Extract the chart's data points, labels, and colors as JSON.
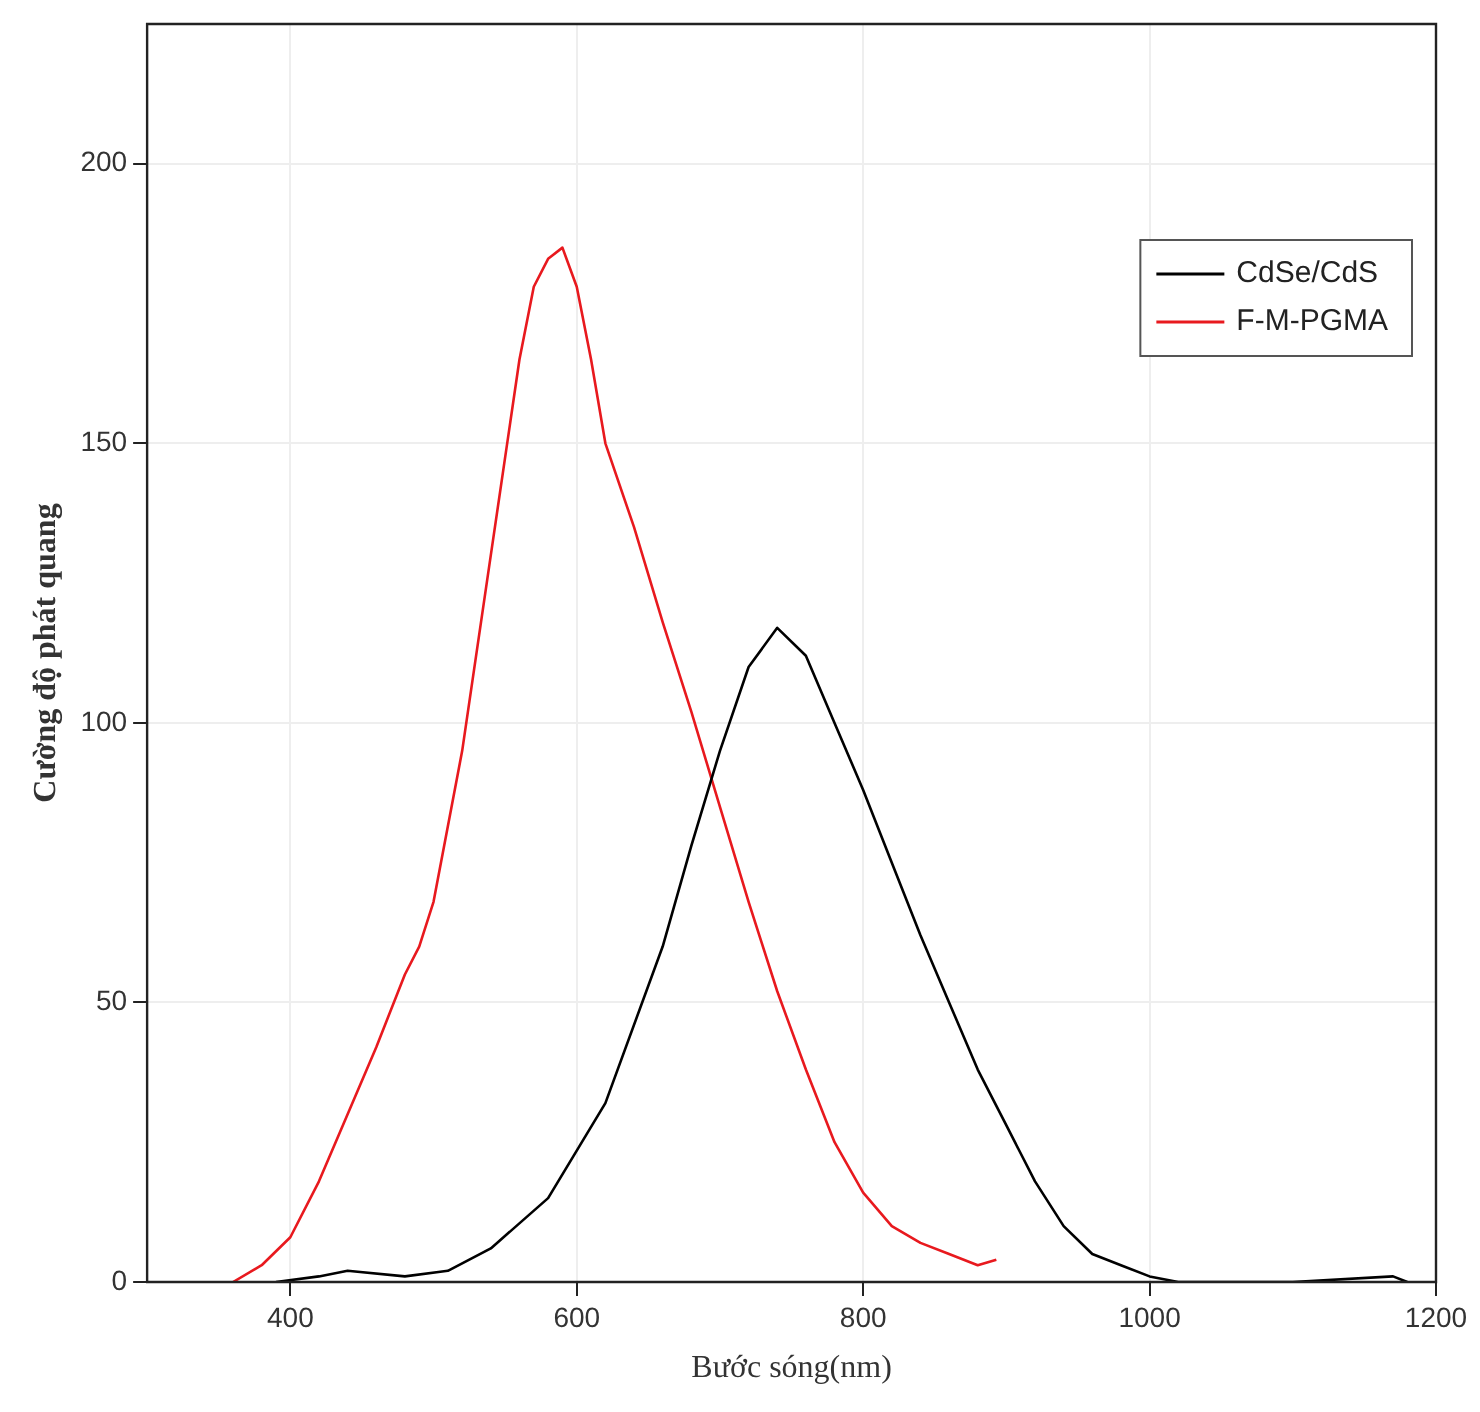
{
  "chart_data": {
    "type": "line",
    "xlabel": "Bước sóng(nm)",
    "ylabel": "Cường độ phát quang",
    "xlim": [
      300,
      1200
    ],
    "xticks": [
      400,
      600,
      800,
      1000,
      1200
    ],
    "ylim": [
      0,
      225
    ],
    "yticks": [
      0,
      50,
      100,
      150,
      200
    ],
    "grid": true,
    "legend": "top right",
    "marker": "none",
    "line_style": "solid",
    "series": [
      {
        "name": "CdSe/CdS",
        "color": "#000000",
        "x": [
          390,
          420,
          440,
          480,
          510,
          540,
          580,
          620,
          660,
          680,
          700,
          720,
          740,
          760,
          780,
          800,
          820,
          840,
          860,
          880,
          900,
          920,
          940,
          960,
          980,
          1000,
          1020,
          1100,
          1170,
          1180
        ],
        "values": [
          0,
          1,
          2,
          1,
          2,
          6,
          15,
          32,
          60,
          78,
          95,
          110,
          117,
          112,
          100,
          88,
          75,
          62,
          50,
          38,
          28,
          18,
          10,
          5,
          3,
          1,
          0,
          0,
          1,
          0
        ]
      },
      {
        "name": "F-M-PGMA",
        "color": "#e8191e",
        "x": [
          360,
          380,
          400,
          420,
          440,
          460,
          480,
          490,
          500,
          520,
          540,
          560,
          570,
          580,
          590,
          600,
          610,
          620,
          640,
          660,
          680,
          700,
          720,
          740,
          760,
          780,
          800,
          820,
          840,
          860,
          880,
          893
        ],
        "values": [
          0,
          3,
          8,
          18,
          30,
          42,
          55,
          60,
          68,
          95,
          130,
          165,
          178,
          183,
          185,
          178,
          165,
          150,
          135,
          118,
          102,
          85,
          68,
          52,
          38,
          25,
          16,
          10,
          7,
          5,
          3,
          4
        ]
      }
    ]
  }
}
